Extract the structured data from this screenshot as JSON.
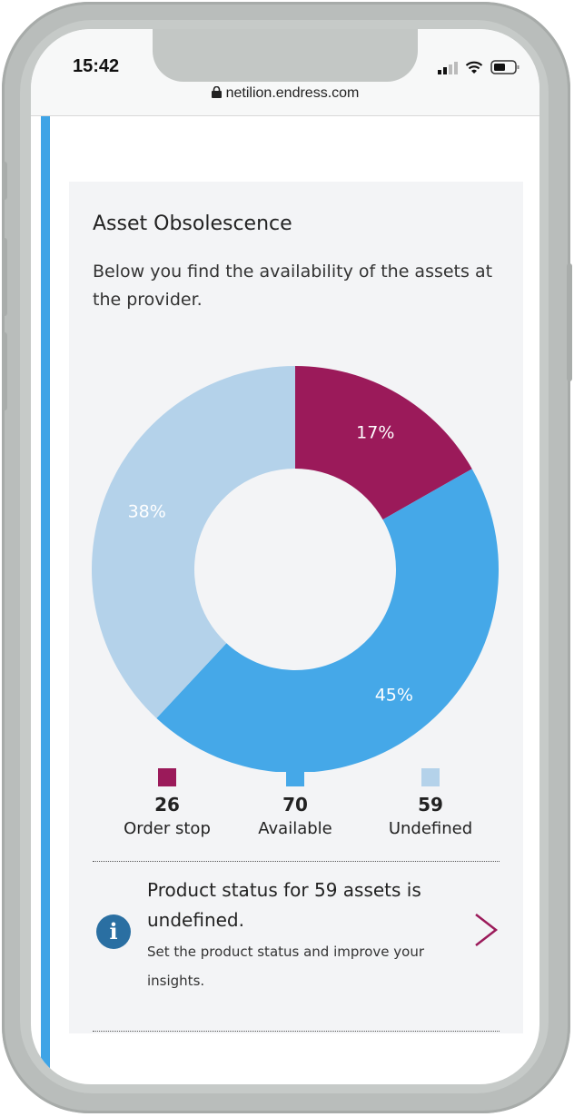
{
  "status_bar": {
    "time": "15:42",
    "url": "netilion.endress.com",
    "icons": [
      "signal-icon",
      "wifi-icon",
      "battery-icon",
      "lock-icon"
    ]
  },
  "card": {
    "title": "Asset Obsolescence",
    "description": "Below you find the availability of the assets at the provider."
  },
  "chart_data": {
    "type": "pie",
    "variant": "donut",
    "categories": [
      "Order stop",
      "Available",
      "Undefined"
    ],
    "values": [
      26,
      70,
      59
    ],
    "data_labels": [
      "17%",
      "45%",
      "38%"
    ],
    "colors": [
      "#9b1a5a",
      "#45a8e8",
      "#b4d2ea"
    ],
    "legend_placement": "bottom"
  },
  "legend": [
    {
      "value": "26",
      "label": "Order stop"
    },
    {
      "value": "70",
      "label": "Available"
    },
    {
      "value": "59",
      "label": "Undefined"
    }
  ],
  "notice": {
    "icon": "info-icon",
    "message": "Product status for 59 assets is undefined.",
    "sub": "Set the product status and improve your insights.",
    "action_icon": "chevron-right-icon"
  },
  "colors": {
    "accent": "#3fa4e6",
    "brand": "#9b1a5a",
    "info": "#2a6fa2"
  }
}
